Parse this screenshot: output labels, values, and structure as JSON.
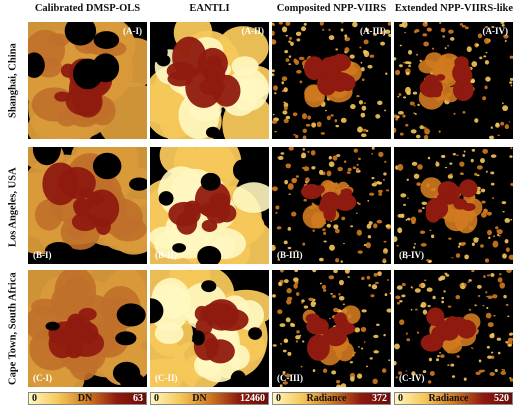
{
  "columns": [
    "Calibrated DMSP-OLS",
    "EANTLI",
    "Composited NPP-VIIRS",
    "Extended NPP-VIIRS-like"
  ],
  "rows": [
    "Shanghai, China",
    "Los Angeles, USA",
    "Cape Town, South Africa"
  ],
  "panel_labels": [
    [
      "(A-I)",
      "(A-II)",
      "(A-III)",
      "(A-IV)"
    ],
    [
      "(B-I)",
      "(B-II)",
      "(B-III)",
      "(B-IV)"
    ],
    [
      "(C-I)",
      "(C-II)",
      "(C-III)",
      "(C-IV)"
    ]
  ],
  "colorbars": [
    {
      "min": "0",
      "unit": "DN",
      "max": "63"
    },
    {
      "min": "0",
      "unit": "DN",
      "max": "12460"
    },
    {
      "min": "0",
      "unit": "Radiance",
      "max": "372"
    },
    {
      "min": "0",
      "unit": "Radiance",
      "max": "520"
    }
  ],
  "colors": {
    "high": "#8f1a0f",
    "mid": "#d07a20",
    "low": "#f5c75a",
    "lowest": "#fff7c0",
    "background": "#000000"
  }
}
